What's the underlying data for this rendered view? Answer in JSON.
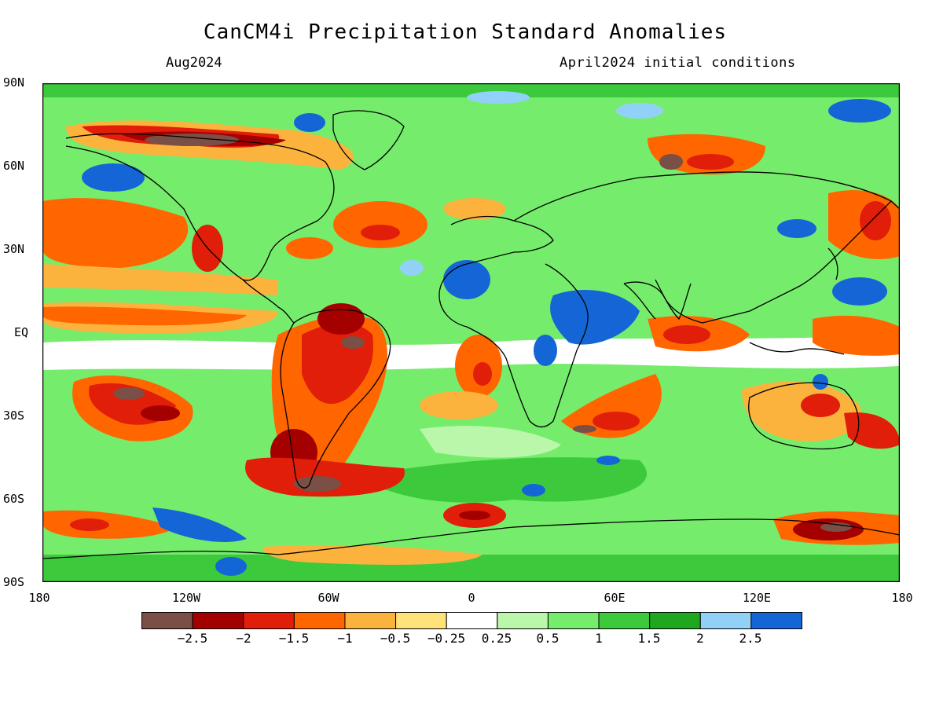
{
  "header": {
    "title": "CanCM4i Precipitation Standard Anomalies",
    "valid_month": "Aug2024",
    "init_conditions": "April2024 initial conditions"
  },
  "axes": {
    "lat_labels": [
      "90N",
      "60N",
      "30N",
      "EQ",
      "30S",
      "60S",
      "90S"
    ],
    "lon_labels": [
      "180",
      "120W",
      "60W",
      "0",
      "60E",
      "120E",
      "180"
    ],
    "lat_range": [
      -90,
      90
    ],
    "lon_range": [
      -180,
      180
    ]
  },
  "colorbar": {
    "colors": [
      "#7a4f45",
      "#a50000",
      "#e01e0a",
      "#ff6600",
      "#fbb33e",
      "#ffe27a",
      "#ffffff",
      "#baf7ab",
      "#76ec6c",
      "#3cca3c",
      "#1fa81f",
      "#92d1f7",
      "#1466d6"
    ],
    "labels": [
      "−2.5",
      "−2",
      "−1.5",
      "−1",
      "−0.5",
      "−0.25",
      "0.25",
      "0.5",
      "1",
      "1.5",
      "2",
      "2.5"
    ]
  }
}
